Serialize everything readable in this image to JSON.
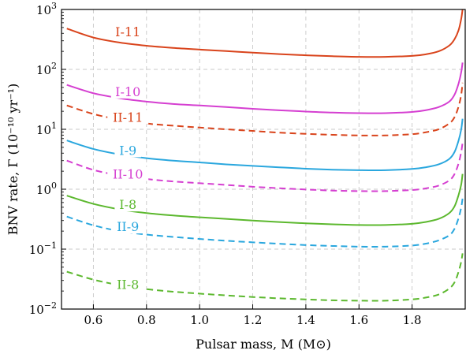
{
  "chart_data": {
    "type": "line",
    "title": "",
    "xlabel": "Pulsar mass, M (M⊙)",
    "ylabel": "BNV rate, Γ (10⁻¹⁰ yr⁻¹)",
    "xlim": [
      0.48,
      2.0
    ],
    "ylim": [
      0.01,
      1000
    ],
    "yscale": "log",
    "grid": true,
    "xticks": [
      {
        "value": 0.6,
        "label": "0.6"
      },
      {
        "value": 0.8,
        "label": "0.8"
      },
      {
        "value": 1.0,
        "label": "1.0"
      },
      {
        "value": 1.2,
        "label": "1.2"
      },
      {
        "value": 1.4,
        "label": "1.4"
      },
      {
        "value": 1.6,
        "label": "1.6"
      },
      {
        "value": 1.8,
        "label": "1.8"
      }
    ],
    "yticks": [
      {
        "value": 0.01,
        "base": "10",
        "exp": "−2"
      },
      {
        "value": 0.1,
        "base": "10",
        "exp": "−1"
      },
      {
        "value": 1,
        "base": "10",
        "exp": "0"
      },
      {
        "value": 10,
        "base": "10",
        "exp": "1"
      },
      {
        "value": 100,
        "base": "10",
        "exp": "2"
      },
      {
        "value": 1000,
        "base": "10",
        "exp": "3"
      }
    ],
    "x": [
      0.5,
      0.6,
      0.7,
      0.8,
      0.9,
      1.0,
      1.1,
      1.2,
      1.3,
      1.4,
      1.5,
      1.6,
      1.7,
      1.8,
      1.85,
      1.9,
      1.94,
      1.96,
      1.975,
      1.985,
      1.99
    ],
    "series": [
      {
        "name": "I-11",
        "color": "#d9441c",
        "dash": "solid",
        "label_x": 0.73,
        "label_y": 430,
        "values": [
          480,
          340,
          280,
          248,
          228,
          214,
          202,
          190,
          180,
          172,
          166,
          162,
          162,
          168,
          178,
          200,
          250,
          320,
          450,
          700,
          1000
        ]
      },
      {
        "name": "I-10",
        "color": "#d53fd1",
        "dash": "solid",
        "label_x": 0.73,
        "label_y": 43,
        "values": [
          55,
          40,
          33,
          29,
          26.5,
          25,
          23.5,
          22,
          20.8,
          19.8,
          19,
          18.6,
          18.6,
          19.5,
          20.8,
          23.5,
          29,
          38,
          58,
          90,
          130
        ]
      },
      {
        "name": "II-11",
        "color": "#d9441c",
        "dash": "dash",
        "label_x": 0.73,
        "label_y": 16,
        "values": [
          25,
          18,
          14.5,
          12.5,
          11.5,
          10.7,
          10,
          9.4,
          8.8,
          8.4,
          8.1,
          7.9,
          7.9,
          8.3,
          8.9,
          10,
          12.5,
          16,
          24,
          38,
          60
        ]
      },
      {
        "name": "I-9",
        "color": "#2aa7de",
        "dash": "solid",
        "label_x": 0.73,
        "label_y": 4.5,
        "values": [
          6.5,
          4.7,
          3.8,
          3.3,
          3.0,
          2.8,
          2.6,
          2.45,
          2.32,
          2.2,
          2.12,
          2.08,
          2.08,
          2.18,
          2.32,
          2.6,
          3.2,
          4.2,
          6.5,
          10,
          15
        ]
      },
      {
        "name": "II-10",
        "color": "#d53fd1",
        "dash": "dash",
        "label_x": 0.73,
        "label_y": 1.8,
        "values": [
          3.0,
          2.1,
          1.7,
          1.48,
          1.35,
          1.26,
          1.18,
          1.1,
          1.04,
          0.99,
          0.95,
          0.93,
          0.93,
          0.97,
          1.03,
          1.15,
          1.4,
          1.8,
          2.7,
          4.2,
          6.0
        ]
      },
      {
        "name": "I-8",
        "color": "#5cb82e",
        "dash": "solid",
        "label_x": 0.73,
        "label_y": 0.56,
        "values": [
          0.78,
          0.57,
          0.46,
          0.4,
          0.365,
          0.34,
          0.32,
          0.3,
          0.283,
          0.27,
          0.26,
          0.253,
          0.253,
          0.265,
          0.283,
          0.32,
          0.4,
          0.52,
          0.8,
          1.2,
          1.8
        ]
      },
      {
        "name": "II-9",
        "color": "#2aa7de",
        "dash": "dash",
        "label_x": 0.73,
        "label_y": 0.24,
        "values": [
          0.35,
          0.25,
          0.2,
          0.175,
          0.16,
          0.148,
          0.138,
          0.13,
          0.123,
          0.117,
          0.113,
          0.11,
          0.11,
          0.115,
          0.123,
          0.14,
          0.17,
          0.22,
          0.33,
          0.5,
          0.7
        ]
      },
      {
        "name": "II-8",
        "color": "#5cb82e",
        "dash": "dash",
        "label_x": 0.73,
        "label_y": 0.026,
        "values": [
          0.042,
          0.031,
          0.025,
          0.0215,
          0.0195,
          0.0181,
          0.0169,
          0.0159,
          0.0151,
          0.0145,
          0.014,
          0.0138,
          0.0138,
          0.0145,
          0.0155,
          0.0175,
          0.022,
          0.028,
          0.042,
          0.062,
          0.085
        ]
      }
    ]
  }
}
